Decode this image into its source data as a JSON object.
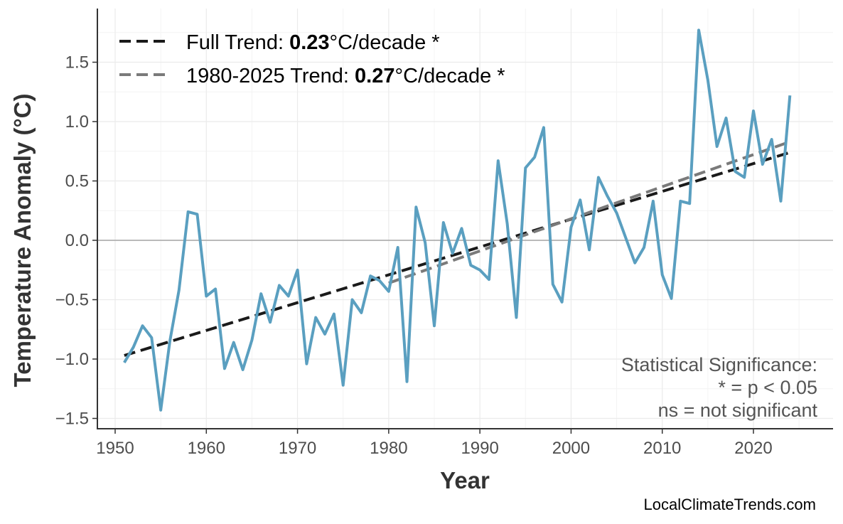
{
  "chart_data": {
    "type": "line",
    "xlabel": "Year",
    "ylabel": "Temperature Anomaly (°C)",
    "xlim": [
      1947,
      2029
    ],
    "ylim": [
      -1.6,
      1.9
    ],
    "xticks": [
      1950,
      1960,
      1970,
      1980,
      1990,
      2000,
      2010,
      2020
    ],
    "yticks": [
      -1.5,
      -1.0,
      -0.5,
      0.0,
      0.5,
      1.0,
      1.5
    ],
    "ytick_labels": [
      "−1.5",
      "−1.0",
      "−0.5",
      "0.0",
      "0.5",
      "1.0",
      "1.5"
    ],
    "grid": true,
    "legend_position": "top-left",
    "series": [
      {
        "color": "#5a9fc0",
        "x": [
          1951,
          1952,
          1953,
          1954,
          1955,
          1956,
          1957,
          1958,
          1959,
          1960,
          1961,
          1962,
          1963,
          1964,
          1965,
          1966,
          1967,
          1968,
          1969,
          1970,
          1971,
          1972,
          1973,
          1974,
          1975,
          1976,
          1977,
          1978,
          1979,
          1980,
          1981,
          1982,
          1983,
          1984,
          1985,
          1986,
          1987,
          1988,
          1989,
          1990,
          1991,
          1992,
          1993,
          1994,
          1995,
          1996,
          1997,
          1998,
          1999,
          2000,
          2001,
          2002,
          2003,
          2004,
          2005,
          2006,
          2007,
          2008,
          2009,
          2010,
          2011,
          2012,
          2013,
          2014,
          2015,
          2016,
          2017,
          2018,
          2019,
          2020,
          2021,
          2022,
          2023,
          2024
        ],
        "y": [
          -1.03,
          -0.9,
          -0.72,
          -0.82,
          -1.43,
          -0.85,
          -0.42,
          0.24,
          0.22,
          -0.47,
          -0.41,
          -1.08,
          -0.86,
          -1.09,
          -0.84,
          -0.45,
          -0.69,
          -0.38,
          -0.47,
          -0.25,
          -1.04,
          -0.65,
          -0.79,
          -0.62,
          -1.22,
          -0.5,
          -0.61,
          -0.3,
          -0.34,
          -0.43,
          -0.06,
          -1.19,
          0.28,
          -0.02,
          -0.72,
          0.15,
          -0.11,
          0.1,
          -0.21,
          -0.25,
          -0.33,
          0.67,
          0.14,
          -0.65,
          0.61,
          0.7,
          0.95,
          -0.37,
          -0.52,
          0.11,
          0.34,
          -0.08,
          0.53,
          0.37,
          0.23,
          0.02,
          -0.19,
          -0.06,
          0.33,
          -0.29,
          -0.49,
          0.33,
          0.31,
          1.77,
          1.35,
          0.79,
          1.03,
          0.58,
          0.53,
          1.09,
          0.64,
          0.85,
          0.33,
          1.22
        ]
      }
    ],
    "trends": [
      {
        "label_prefix": "Full Trend: ",
        "value": "0.23",
        "label_suffix": "°C/decade *",
        "color": "#1a1a1a",
        "x": [
          1951,
          2024
        ],
        "y": [
          -0.97,
          0.74
        ]
      },
      {
        "label_prefix": "1980-2025 Trend: ",
        "value": "0.27",
        "label_suffix": "°C/decade *",
        "color": "#7a7a7a",
        "x": [
          1980,
          2024
        ],
        "y": [
          -0.36,
          0.83
        ]
      }
    ],
    "annotation": [
      "Statistical Significance:",
      "* = p < 0.05",
      "ns = not significant"
    ],
    "credit": "LocalClimateTrends.com"
  }
}
